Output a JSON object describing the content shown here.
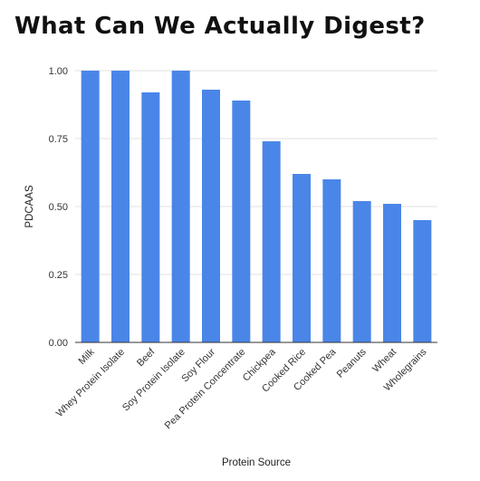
{
  "page": {
    "title": "What Can We Actually Digest?"
  },
  "chart_data": {
    "type": "bar",
    "title": "What Can We Actually Digest?",
    "xlabel": "Protein Source",
    "ylabel": "PDCAAS",
    "categories": [
      "Milk",
      "Whey Protein Isolate",
      "Beef",
      "Soy Protein Isolate",
      "Soy Flour",
      "Pea Protein Concentrate",
      "Chickpea",
      "Cooked Rice",
      "Cooked Pea",
      "Peanuts",
      "Wheat",
      "Wholegrains"
    ],
    "values": [
      1.0,
      1.0,
      0.92,
      1.0,
      0.93,
      0.89,
      0.74,
      0.62,
      0.6,
      0.52,
      0.51,
      0.45
    ],
    "ylim": [
      0,
      1
    ],
    "yticks": [
      "0.00",
      "0.25",
      "0.50",
      "0.75",
      "1.00"
    ],
    "ytick_values": [
      0,
      0.25,
      0.5,
      0.75,
      1.0
    ],
    "grid": true,
    "legend": "none",
    "bar_color": "#4a86e8",
    "grid_color": "#e0e0e0",
    "axis_color": "#333333"
  }
}
